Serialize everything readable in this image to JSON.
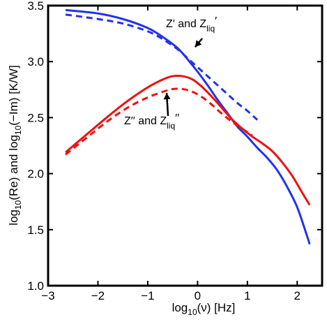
{
  "chart_data": {
    "type": "line",
    "xlabel": {
      "pre": "log",
      "sub": "10",
      "post": "(ν) [Hz]"
    },
    "ylabel": {
      "a": "log",
      "a_sub": "10",
      "b": "(Re) and log",
      "b_sub": "10",
      "c": "(−Im) [K/W]"
    },
    "xlim": [
      -3,
      2.5
    ],
    "ylim": [
      1.0,
      3.5
    ],
    "xticks": [
      -3,
      -2,
      -1,
      0,
      1,
      2
    ],
    "xtick_labels": [
      "−3",
      "−2",
      "−1",
      "0",
      "1",
      "2"
    ],
    "yticks": [
      1.0,
      1.5,
      2.0,
      2.5,
      3.0,
      3.5
    ],
    "ytick_labels": [
      "1.0",
      "1.5",
      "2.0",
      "2.5",
      "3.0",
      "3.5"
    ],
    "grid": false,
    "series": [
      {
        "color": "#2233ee",
        "style": "solid",
        "x": [
          -2.65,
          -2.0,
          -1.5,
          -1.0,
          -0.7,
          -0.4,
          -0.2,
          0.0,
          0.2,
          0.4,
          0.6,
          0.8,
          1.0,
          1.2,
          1.4,
          1.6,
          1.8,
          2.0,
          2.2,
          2.25
        ],
        "y": [
          3.46,
          3.43,
          3.38,
          3.3,
          3.22,
          3.12,
          3.02,
          2.91,
          2.79,
          2.66,
          2.54,
          2.42,
          2.33,
          2.23,
          2.14,
          2.03,
          1.88,
          1.7,
          1.44,
          1.37
        ]
      },
      {
        "color": "#2233ee",
        "style": "dashed",
        "x": [
          -2.65,
          -2.0,
          -1.5,
          -1.0,
          -0.7,
          -0.4,
          -0.2,
          0.0,
          0.2,
          0.4,
          0.6,
          0.8,
          1.0,
          1.2
        ],
        "y": [
          3.42,
          3.38,
          3.34,
          3.27,
          3.2,
          3.11,
          3.03,
          2.95,
          2.87,
          2.79,
          2.71,
          2.63,
          2.56,
          2.48
        ]
      },
      {
        "color": "#ee1111",
        "style": "solid",
        "x": [
          -2.65,
          -2.2,
          -1.8,
          -1.4,
          -1.0,
          -0.7,
          -0.5,
          -0.3,
          -0.1,
          0.1,
          0.3,
          0.5,
          0.7,
          0.9,
          1.1,
          1.3,
          1.5,
          1.7,
          1.9,
          2.1,
          2.25
        ],
        "y": [
          2.19,
          2.36,
          2.51,
          2.65,
          2.77,
          2.84,
          2.87,
          2.87,
          2.84,
          2.77,
          2.68,
          2.58,
          2.48,
          2.4,
          2.33,
          2.27,
          2.2,
          2.1,
          1.98,
          1.83,
          1.72
        ]
      },
      {
        "color": "#ee1111",
        "style": "dashed",
        "x": [
          -2.65,
          -2.2,
          -1.8,
          -1.4,
          -1.0,
          -0.7,
          -0.5,
          -0.3,
          -0.1,
          0.1,
          0.3,
          0.5,
          0.7,
          0.9,
          1.1
        ],
        "y": [
          2.17,
          2.33,
          2.47,
          2.59,
          2.68,
          2.73,
          2.755,
          2.755,
          2.73,
          2.68,
          2.61,
          2.53,
          2.46,
          2.4,
          2.34
        ]
      }
    ],
    "annotations": [
      {
        "id": "upper",
        "p1": "Z′ and Z",
        "sub": "liq",
        "p2": "′",
        "arrow_to": [
          -0.05,
          3.13
        ]
      },
      {
        "id": "lower",
        "p1": "Z′′ and Z",
        "sub": "liq",
        "p2": "′′",
        "arrow_to": [
          -0.62,
          2.72
        ]
      }
    ]
  }
}
